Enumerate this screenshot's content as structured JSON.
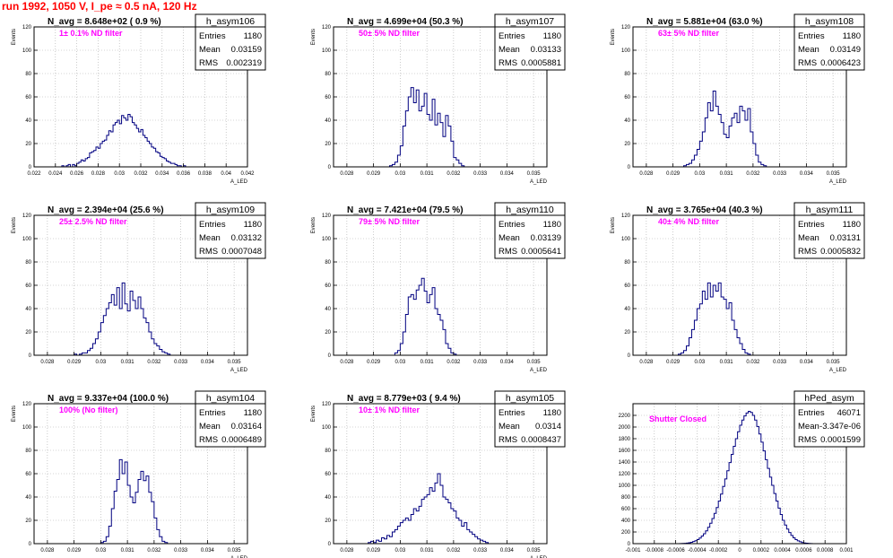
{
  "canvas_title": "run 1992,  1050 V, I_pe ≈ 0.5 nA, 120 Hz",
  "style": {
    "frame": "#000000",
    "grid": "#aaaaaa",
    "histogram": "#000080",
    "title_text": "#000000",
    "annotation": "#ff00ff"
  },
  "chart_data": [
    {
      "type": "bar",
      "histogram_name": "h_asym106",
      "stats": {
        "entries_label": "Entries",
        "entries": "1180",
        "mean_label": "Mean",
        "mean": "0.03159",
        "rms_label": "RMS",
        "rms": "0.002319"
      },
      "n_avg_label": "N_avg = 8.648e+02 ( 0.9 %)",
      "filter_label": "1± 0.1% ND filter",
      "ylabel": "Events",
      "xlabel": "A_LED",
      "grid": true,
      "xlim": [
        0.022,
        0.042
      ],
      "ylim": [
        0,
        120
      ],
      "x_ticks": [
        0.022,
        0.024,
        0.026,
        0.028,
        0.03,
        0.032,
        0.034,
        0.036,
        0.038,
        0.04,
        0.042
      ],
      "x_tick_labels": [
        "0.022",
        "0.024",
        "0.026",
        "0.028",
        "0.03",
        "0.032",
        "0.034",
        "0.036",
        "0.038",
        "0.04",
        "0.042"
      ],
      "y_ticks": [
        0,
        20,
        40,
        60,
        80,
        100,
        120
      ],
      "y_tick_labels": [
        "0",
        "20",
        "40",
        "60",
        "80",
        "100",
        "120"
      ],
      "bins_start": 0.0246,
      "bin_width": 0.0002,
      "values": [
        1,
        0,
        1,
        2,
        0,
        2,
        1,
        3,
        4,
        6,
        5,
        7,
        8,
        12,
        13,
        14,
        17,
        16,
        20,
        22,
        23,
        27,
        31,
        30,
        36,
        38,
        40,
        37,
        44,
        42,
        40,
        45,
        43,
        38,
        36,
        33,
        30,
        32,
        27,
        25,
        22,
        20,
        17,
        16,
        13,
        12,
        9,
        8,
        7,
        5,
        4,
        3,
        3,
        2,
        1,
        1,
        0,
        1
      ]
    },
    {
      "type": "bar",
      "histogram_name": "h_asym107",
      "stats": {
        "entries_label": "Entries",
        "entries": "1180",
        "mean_label": "Mean",
        "mean": "0.03133",
        "rms_label": "RMS",
        "rms": "0.0005881"
      },
      "n_avg_label": "N_avg = 4.699e+04 (50.3 %)",
      "filter_label": "50± 5% ND filter",
      "ylabel": "Events",
      "xlabel": "A_LED",
      "grid": true,
      "xlim": [
        0.0275,
        0.0355
      ],
      "ylim": [
        0,
        120
      ],
      "x_ticks": [
        0.028,
        0.029,
        0.03,
        0.031,
        0.032,
        0.033,
        0.034,
        0.035
      ],
      "x_tick_labels": [
        "0.028",
        "0.029",
        "0.03",
        "0.031",
        "0.032",
        "0.033",
        "0.034",
        "0.035"
      ],
      "y_ticks": [
        0,
        20,
        40,
        60,
        80,
        100,
        120
      ],
      "y_tick_labels": [
        "0",
        "20",
        "40",
        "60",
        "80",
        "100",
        "120"
      ],
      "bins_start": 0.0296,
      "bin_width": 0.0001,
      "values": [
        1,
        2,
        4,
        10,
        18,
        35,
        48,
        60,
        68,
        55,
        66,
        48,
        52,
        63,
        45,
        40,
        58,
        36,
        46,
        38,
        26,
        44,
        35,
        22,
        8,
        6,
        3,
        1
      ]
    },
    {
      "type": "bar",
      "histogram_name": "h_asym108",
      "stats": {
        "entries_label": "Entries",
        "entries": "1180",
        "mean_label": "Mean",
        "mean": "0.03149",
        "rms_label": "RMS",
        "rms": "0.0006423"
      },
      "n_avg_label": "N_avg = 5.881e+04 (63.0 %)",
      "filter_label": "63± 5% ND filter",
      "ylabel": "Events",
      "xlabel": "A_LED",
      "grid": true,
      "xlim": [
        0.0275,
        0.0355
      ],
      "ylim": [
        0,
        120
      ],
      "x_ticks": [
        0.028,
        0.029,
        0.03,
        0.031,
        0.032,
        0.033,
        0.034,
        0.035
      ],
      "x_tick_labels": [
        "0.028",
        "0.029",
        "0.03",
        "0.031",
        "0.032",
        "0.033",
        "0.034",
        "0.035"
      ],
      "y_ticks": [
        0,
        20,
        40,
        60,
        80,
        100,
        120
      ],
      "y_tick_labels": [
        "0",
        "20",
        "40",
        "60",
        "80",
        "100",
        "120"
      ],
      "bins_start": 0.0294,
      "bin_width": 0.0001,
      "values": [
        1,
        2,
        3,
        6,
        10,
        15,
        22,
        30,
        42,
        55,
        48,
        65,
        52,
        45,
        38,
        28,
        25,
        35,
        42,
        46,
        38,
        52,
        48,
        40,
        50,
        30,
        20,
        10,
        4,
        2,
        1
      ]
    },
    {
      "type": "bar",
      "histogram_name": "h_asym109",
      "stats": {
        "entries_label": "Entries",
        "entries": "1180",
        "mean_label": "Mean",
        "mean": "0.03132",
        "rms_label": "RMS",
        "rms": "0.0007048"
      },
      "n_avg_label": "N_avg = 2.394e+04 (25.6 %)",
      "filter_label": "25± 2.5% ND filter",
      "ylabel": "Events",
      "xlabel": "A_LED",
      "grid": true,
      "xlim": [
        0.0275,
        0.0355
      ],
      "ylim": [
        0,
        120
      ],
      "x_ticks": [
        0.028,
        0.029,
        0.03,
        0.031,
        0.032,
        0.033,
        0.034,
        0.035
      ],
      "x_tick_labels": [
        "0.028",
        "0.029",
        "0.03",
        "0.031",
        "0.032",
        "0.033",
        "0.034",
        "0.035"
      ],
      "y_ticks": [
        0,
        20,
        40,
        60,
        80,
        100,
        120
      ],
      "y_tick_labels": [
        "0",
        "20",
        "40",
        "60",
        "80",
        "100",
        "120"
      ],
      "bins_start": 0.029,
      "bin_width": 0.0001,
      "values": [
        1,
        0,
        1,
        2,
        2,
        4,
        6,
        10,
        14,
        20,
        28,
        34,
        40,
        45,
        52,
        43,
        58,
        40,
        62,
        44,
        38,
        55,
        47,
        40,
        50,
        40,
        32,
        28,
        20,
        14,
        10,
        8,
        5,
        3,
        2,
        1
      ]
    },
    {
      "type": "bar",
      "histogram_name": "h_asym110",
      "stats": {
        "entries_label": "Entries",
        "entries": "1180",
        "mean_label": "Mean",
        "mean": "0.03139",
        "rms_label": "RMS",
        "rms": "0.0005641"
      },
      "n_avg_label": "N_avg = 7.421e+04 (79.5 %)",
      "filter_label": "79± 5% ND filter",
      "ylabel": "Events",
      "xlabel": "A_LED",
      "grid": true,
      "xlim": [
        0.0275,
        0.0355
      ],
      "ylim": [
        0,
        120
      ],
      "x_ticks": [
        0.028,
        0.029,
        0.03,
        0.031,
        0.032,
        0.033,
        0.034,
        0.035
      ],
      "x_tick_labels": [
        "0.028",
        "0.029",
        "0.03",
        "0.031",
        "0.032",
        "0.033",
        "0.034",
        "0.035"
      ],
      "y_ticks": [
        0,
        20,
        40,
        60,
        80,
        100,
        120
      ],
      "y_tick_labels": [
        "0",
        "20",
        "40",
        "60",
        "80",
        "100",
        "120"
      ],
      "bins_start": 0.0298,
      "bin_width": 0.0001,
      "values": [
        2,
        4,
        10,
        20,
        35,
        50,
        52,
        48,
        56,
        60,
        66,
        55,
        45,
        52,
        58,
        40,
        35,
        30,
        22,
        10,
        6,
        2,
        1
      ]
    },
    {
      "type": "bar",
      "histogram_name": "h_asym111",
      "stats": {
        "entries_label": "Entries",
        "entries": "1180",
        "mean_label": "Mean",
        "mean": "0.03131",
        "rms_label": "RMS",
        "rms": "0.0005832"
      },
      "n_avg_label": "N_avg = 3.765e+04 (40.3 %)",
      "filter_label": "40± 4% ND filter",
      "ylabel": "Events",
      "xlabel": "A_LED",
      "grid": true,
      "xlim": [
        0.0275,
        0.0355
      ],
      "ylim": [
        0,
        120
      ],
      "x_ticks": [
        0.028,
        0.029,
        0.03,
        0.031,
        0.032,
        0.033,
        0.034,
        0.035
      ],
      "x_tick_labels": [
        "0.028",
        "0.029",
        "0.03",
        "0.031",
        "0.032",
        "0.033",
        "0.034",
        "0.035"
      ],
      "y_ticks": [
        0,
        20,
        40,
        60,
        80,
        100,
        120
      ],
      "y_tick_labels": [
        "0",
        "20",
        "40",
        "60",
        "80",
        "100",
        "120"
      ],
      "bins_start": 0.0292,
      "bin_width": 0.0001,
      "values": [
        1,
        2,
        4,
        8,
        15,
        22,
        30,
        40,
        44,
        55,
        48,
        62,
        50,
        60,
        55,
        62,
        50,
        48,
        40,
        45,
        30,
        22,
        15,
        10,
        5,
        2,
        1
      ]
    },
    {
      "type": "bar",
      "histogram_name": "h_asym104",
      "stats": {
        "entries_label": "Entries",
        "entries": "1180",
        "mean_label": "Mean",
        "mean": "0.03164",
        "rms_label": "RMS",
        "rms": "0.0006489"
      },
      "n_avg_label": "N_avg = 9.337e+04 (100.0 %)",
      "filter_label": "100% (No filter)",
      "ylabel": "Events",
      "xlabel": "A_LED",
      "grid": true,
      "xlim": [
        0.0275,
        0.0355
      ],
      "ylim": [
        0,
        120
      ],
      "x_ticks": [
        0.028,
        0.029,
        0.03,
        0.031,
        0.032,
        0.033,
        0.034,
        0.035
      ],
      "x_tick_labels": [
        "0.028",
        "0.029",
        "0.03",
        "0.031",
        "0.032",
        "0.033",
        "0.034",
        "0.035"
      ],
      "y_ticks": [
        0,
        20,
        40,
        60,
        80,
        100,
        120
      ],
      "y_tick_labels": [
        "0",
        "20",
        "40",
        "60",
        "80",
        "100",
        "120"
      ],
      "bins_start": 0.03,
      "bin_width": 0.0001,
      "values": [
        1,
        2,
        6,
        15,
        30,
        45,
        55,
        72,
        60,
        70,
        50,
        40,
        35,
        44,
        55,
        62,
        54,
        58,
        44,
        36,
        22,
        12,
        6,
        2,
        1
      ]
    },
    {
      "type": "bar",
      "histogram_name": "h_asym105",
      "stats": {
        "entries_label": "Entries",
        "entries": "1180",
        "mean_label": "Mean",
        "mean": "0.0314",
        "rms_label": "RMS",
        "rms": "0.0008437"
      },
      "n_avg_label": "N_avg = 8.779e+03 ( 9.4 %)",
      "filter_label": "10± 1% ND filter",
      "ylabel": "Events",
      "xlabel": "A_LED",
      "grid": true,
      "xlim": [
        0.0275,
        0.0355
      ],
      "ylim": [
        0,
        120
      ],
      "x_ticks": [
        0.028,
        0.029,
        0.03,
        0.031,
        0.032,
        0.033,
        0.034,
        0.035
      ],
      "x_tick_labels": [
        "0.028",
        "0.029",
        "0.03",
        "0.031",
        "0.032",
        "0.033",
        "0.034",
        "0.035"
      ],
      "y_ticks": [
        0,
        20,
        40,
        60,
        80,
        100,
        120
      ],
      "y_tick_labels": [
        "0",
        "20",
        "40",
        "60",
        "80",
        "100",
        "120"
      ],
      "bins_start": 0.0288,
      "bin_width": 0.0001,
      "values": [
        1,
        2,
        1,
        3,
        2,
        5,
        4,
        7,
        6,
        10,
        12,
        15,
        18,
        20,
        22,
        20,
        25,
        30,
        28,
        32,
        38,
        40,
        42,
        48,
        45,
        52,
        60,
        50,
        40,
        38,
        35,
        30,
        28,
        22,
        20,
        15,
        18,
        12,
        10,
        8,
        6,
        4,
        3,
        2,
        1
      ]
    },
    {
      "type": "bar",
      "histogram_name": "hPed_asym",
      "stats": {
        "entries_label": "Entries",
        "entries": "46071",
        "mean_label": "Mean",
        "mean": "-3.347e-06",
        "rms_label": "RMS",
        "rms": "0.0001599"
      },
      "filter_label": "Shutter Closed",
      "ylabel": "",
      "xlabel": "",
      "grid": true,
      "xlim": [
        -0.001,
        0.001
      ],
      "ylim": [
        0,
        2400
      ],
      "x_ticks": [
        -0.001,
        -0.0008,
        -0.0006,
        -0.0004,
        -0.0002,
        0,
        0.0002,
        0.0004,
        0.0006,
        0.0008,
        0.001
      ],
      "x_tick_labels": [
        "-0.001",
        "-0.0008",
        "-0.0006",
        "-0.0004",
        "-0.0002",
        "0",
        "0.0002",
        "0.0004",
        "0.0006",
        "0.0008",
        "0.001"
      ],
      "y_ticks": [
        0,
        200,
        400,
        600,
        800,
        1000,
        1200,
        1400,
        1600,
        1800,
        2000,
        2200
      ],
      "y_tick_labels": [
        "0",
        "200",
        "400",
        "600",
        "800",
        "1000",
        "1200",
        "1400",
        "1600",
        "1800",
        "2000",
        "2200"
      ],
      "bins_start": -0.00056,
      "bin_width": 2e-05,
      "values": [
        2,
        4,
        6,
        10,
        16,
        24,
        36,
        50,
        70,
        96,
        130,
        170,
        220,
        280,
        350,
        430,
        520,
        620,
        730,
        850,
        980,
        1110,
        1250,
        1390,
        1530,
        1670,
        1800,
        1920,
        2030,
        2120,
        2190,
        2240,
        2270,
        2250,
        2200,
        2120,
        2010,
        1880,
        1740,
        1590,
        1440,
        1290,
        1140,
        1000,
        860,
        730,
        610,
        500,
        400,
        320,
        250,
        190,
        140,
        100,
        70,
        48,
        32,
        20,
        12,
        7,
        4,
        2
      ]
    }
  ]
}
